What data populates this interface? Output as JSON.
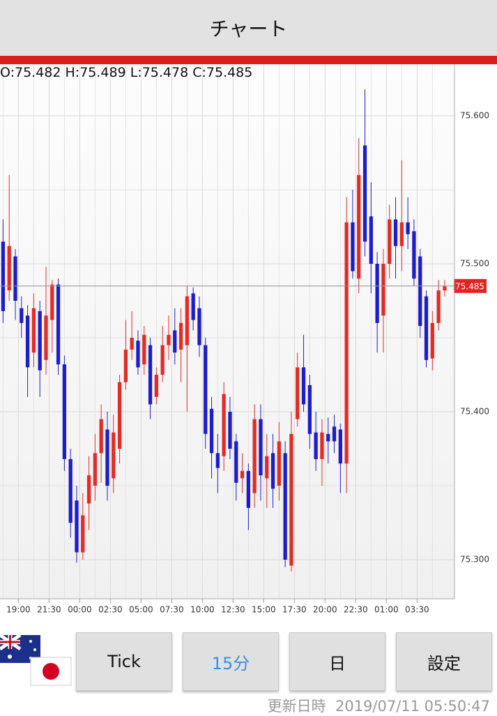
{
  "header": {
    "title": "チャート"
  },
  "chart_data": {
    "type": "candlestick",
    "ohlc_labels": [
      "O:",
      "H:",
      "L:",
      "C:"
    ],
    "candles": [
      [
        75.515,
        75.53,
        75.46,
        75.468
      ],
      [
        75.482,
        75.56,
        75.475,
        75.512
      ],
      [
        75.505,
        75.51,
        75.462,
        75.475
      ],
      [
        75.47,
        75.478,
        75.45,
        75.46
      ],
      [
        75.465,
        75.472,
        75.41,
        75.43
      ],
      [
        75.44,
        75.48,
        75.43,
        75.47
      ],
      [
        75.468,
        75.475,
        75.41,
        75.428
      ],
      [
        75.435,
        75.498,
        75.425,
        75.465
      ],
      [
        75.462,
        75.489,
        75.44,
        75.486
      ],
      [
        75.486,
        75.49,
        75.425,
        75.432
      ],
      [
        75.432,
        75.438,
        75.36,
        75.368
      ],
      [
        75.368,
        75.375,
        75.315,
        75.325
      ],
      [
        75.34,
        75.35,
        75.298,
        75.305
      ],
      [
        75.305,
        75.345,
        75.3,
        75.33
      ],
      [
        75.338,
        75.37,
        75.32,
        75.357
      ],
      [
        75.35,
        75.385,
        75.34,
        75.372
      ],
      [
        75.372,
        75.405,
        75.352,
        75.395
      ],
      [
        75.388,
        75.4,
        75.34,
        75.35
      ],
      [
        75.355,
        75.398,
        75.345,
        75.386
      ],
      [
        75.375,
        75.425,
        75.365,
        75.42
      ],
      [
        75.42,
        75.462,
        75.415,
        75.442
      ],
      [
        75.442,
        75.468,
        75.435,
        75.45
      ],
      [
        75.448,
        75.455,
        75.425,
        75.43
      ],
      [
        75.432,
        75.458,
        75.425,
        75.452
      ],
      [
        75.445,
        75.45,
        75.395,
        75.405
      ],
      [
        75.41,
        75.43,
        75.405,
        75.425
      ],
      [
        75.425,
        75.458,
        75.42,
        75.445
      ],
      [
        75.445,
        75.465,
        75.435,
        75.452
      ],
      [
        75.455,
        75.47,
        75.432,
        75.44
      ],
      [
        75.442,
        75.47,
        75.42,
        75.46
      ],
      [
        75.445,
        75.485,
        75.4,
        75.478
      ],
      [
        75.48,
        75.484,
        75.455,
        75.462
      ],
      [
        75.47,
        75.478,
        75.437,
        75.445
      ],
      [
        75.445,
        75.45,
        75.375,
        75.385
      ],
      [
        75.402,
        75.41,
        75.355,
        75.372
      ],
      [
        75.372,
        75.385,
        75.345,
        75.362
      ],
      [
        75.37,
        75.42,
        75.36,
        75.412
      ],
      [
        75.4,
        75.41,
        75.368,
        75.375
      ],
      [
        75.38,
        75.385,
        75.34,
        75.352
      ],
      [
        75.355,
        75.372,
        75.345,
        75.36
      ],
      [
        75.36,
        75.365,
        75.32,
        75.335
      ],
      [
        75.345,
        75.405,
        75.335,
        75.395
      ],
      [
        75.395,
        75.405,
        75.34,
        75.357
      ],
      [
        75.355,
        75.385,
        75.335,
        75.37
      ],
      [
        75.372,
        75.385,
        75.335,
        75.348
      ],
      [
        75.35,
        75.393,
        75.34,
        75.38
      ],
      [
        75.372,
        75.38,
        75.295,
        75.3
      ],
      [
        75.296,
        75.4,
        75.292,
        75.385
      ],
      [
        75.395,
        75.44,
        75.39,
        75.43
      ],
      [
        75.43,
        75.452,
        75.4,
        75.405
      ],
      [
        75.418,
        75.425,
        75.375,
        75.385
      ],
      [
        75.386,
        75.4,
        75.36,
        75.368
      ],
      [
        75.368,
        75.395,
        75.35,
        75.386
      ],
      [
        75.385,
        75.396,
        75.365,
        75.38
      ],
      [
        75.39,
        75.398,
        75.372,
        75.38
      ],
      [
        75.388,
        75.392,
        75.345,
        75.365
      ],
      [
        75.365,
        75.545,
        75.345,
        75.528
      ],
      [
        75.528,
        75.55,
        75.49,
        75.495
      ],
      [
        75.49,
        75.585,
        75.48,
        75.56
      ],
      [
        75.58,
        75.618,
        75.505,
        75.515
      ],
      [
        75.532,
        75.555,
        75.48,
        75.5
      ],
      [
        75.5,
        75.508,
        75.44,
        75.46
      ],
      [
        75.465,
        75.51,
        75.44,
        75.5
      ],
      [
        75.5,
        75.54,
        75.49,
        75.53
      ],
      [
        75.53,
        75.545,
        75.49,
        75.512
      ],
      [
        75.512,
        75.57,
        75.495,
        75.528
      ],
      [
        75.528,
        75.545,
        75.51,
        75.52
      ],
      [
        75.522,
        75.53,
        75.485,
        75.49
      ],
      [
        75.505,
        75.51,
        75.45,
        75.458
      ],
      [
        75.478,
        75.482,
        75.43,
        75.435
      ],
      [
        75.436,
        75.468,
        75.428,
        75.46
      ],
      [
        75.46,
        75.489,
        75.455,
        75.482
      ],
      [
        75.482,
        75.489,
        75.478,
        75.485
      ]
    ],
    "up_color": "#e42b25",
    "down_color": "#1d1dc9",
    "xlim": [
      -0.5,
      73.6
    ],
    "xticks": [
      {
        "value": 2.5,
        "label": "19:00"
      },
      {
        "value": 7.5,
        "label": "21:30"
      },
      {
        "value": 12.5,
        "label": "00:00"
      },
      {
        "value": 17.5,
        "label": "02:30"
      },
      {
        "value": 22.5,
        "label": "05:00"
      },
      {
        "value": 27.5,
        "label": "07:30"
      },
      {
        "value": 32.5,
        "label": "10:00"
      },
      {
        "value": 37.5,
        "label": "12:30"
      },
      {
        "value": 42.5,
        "label": "15:00"
      },
      {
        "value": 47.5,
        "label": "17:30"
      },
      {
        "value": 52.5,
        "label": "20:00"
      },
      {
        "value": 57.5,
        "label": "22:30"
      },
      {
        "value": 62.5,
        "label": "01:00"
      },
      {
        "value": 67.5,
        "label": "03:30"
      }
    ],
    "ylim": [
      75.2736,
      75.6349
    ],
    "yticks": [
      {
        "value": 75.3,
        "label": "75.300"
      },
      {
        "value": 75.4,
        "label": "75.400"
      },
      {
        "value": 75.5,
        "label": "75.500"
      },
      {
        "value": 75.6,
        "label": "75.600"
      }
    ],
    "grid": true
  },
  "buttons": [
    "Tick",
    "15分",
    "日",
    "設定"
  ],
  "footer": {
    "label": "更新日時",
    "timestamp": "2019/07/11 05:50:47"
  }
}
